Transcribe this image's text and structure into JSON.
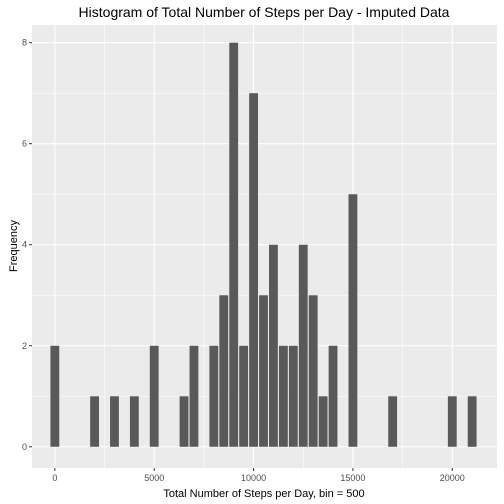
{
  "chart_data": {
    "type": "bar",
    "title": "Histogram of Total Number of Steps per Day - Imputed Data",
    "xlabel": "Total Number of Steps per Day, bin = 500",
    "ylabel": "Frequency",
    "bin_width": 500,
    "xlim": [
      -1150,
      22250
    ],
    "ylim": [
      -0.42,
      8.35
    ],
    "x_ticks": [
      0,
      5000,
      10000,
      15000,
      20000
    ],
    "y_ticks": [
      0,
      2,
      4,
      6,
      8
    ],
    "grid": true,
    "bar_color": "#595959",
    "panel_background": "#ebebeb",
    "grid_color": "#ffffff",
    "bins": [
      {
        "x": 0,
        "count": 2
      },
      {
        "x": 2000,
        "count": 1
      },
      {
        "x": 3000,
        "count": 1
      },
      {
        "x": 4000,
        "count": 1
      },
      {
        "x": 5000,
        "count": 2
      },
      {
        "x": 6500,
        "count": 1
      },
      {
        "x": 7000,
        "count": 2
      },
      {
        "x": 8000,
        "count": 2
      },
      {
        "x": 8500,
        "count": 3
      },
      {
        "x": 9000,
        "count": 8
      },
      {
        "x": 9500,
        "count": 2
      },
      {
        "x": 10000,
        "count": 7
      },
      {
        "x": 10500,
        "count": 3
      },
      {
        "x": 11000,
        "count": 4
      },
      {
        "x": 11500,
        "count": 2
      },
      {
        "x": 12000,
        "count": 2
      },
      {
        "x": 12500,
        "count": 4
      },
      {
        "x": 13000,
        "count": 3
      },
      {
        "x": 13500,
        "count": 1
      },
      {
        "x": 14000,
        "count": 2
      },
      {
        "x": 15000,
        "count": 5
      },
      {
        "x": 17000,
        "count": 1
      },
      {
        "x": 20000,
        "count": 1
      },
      {
        "x": 21000,
        "count": 1
      }
    ]
  }
}
